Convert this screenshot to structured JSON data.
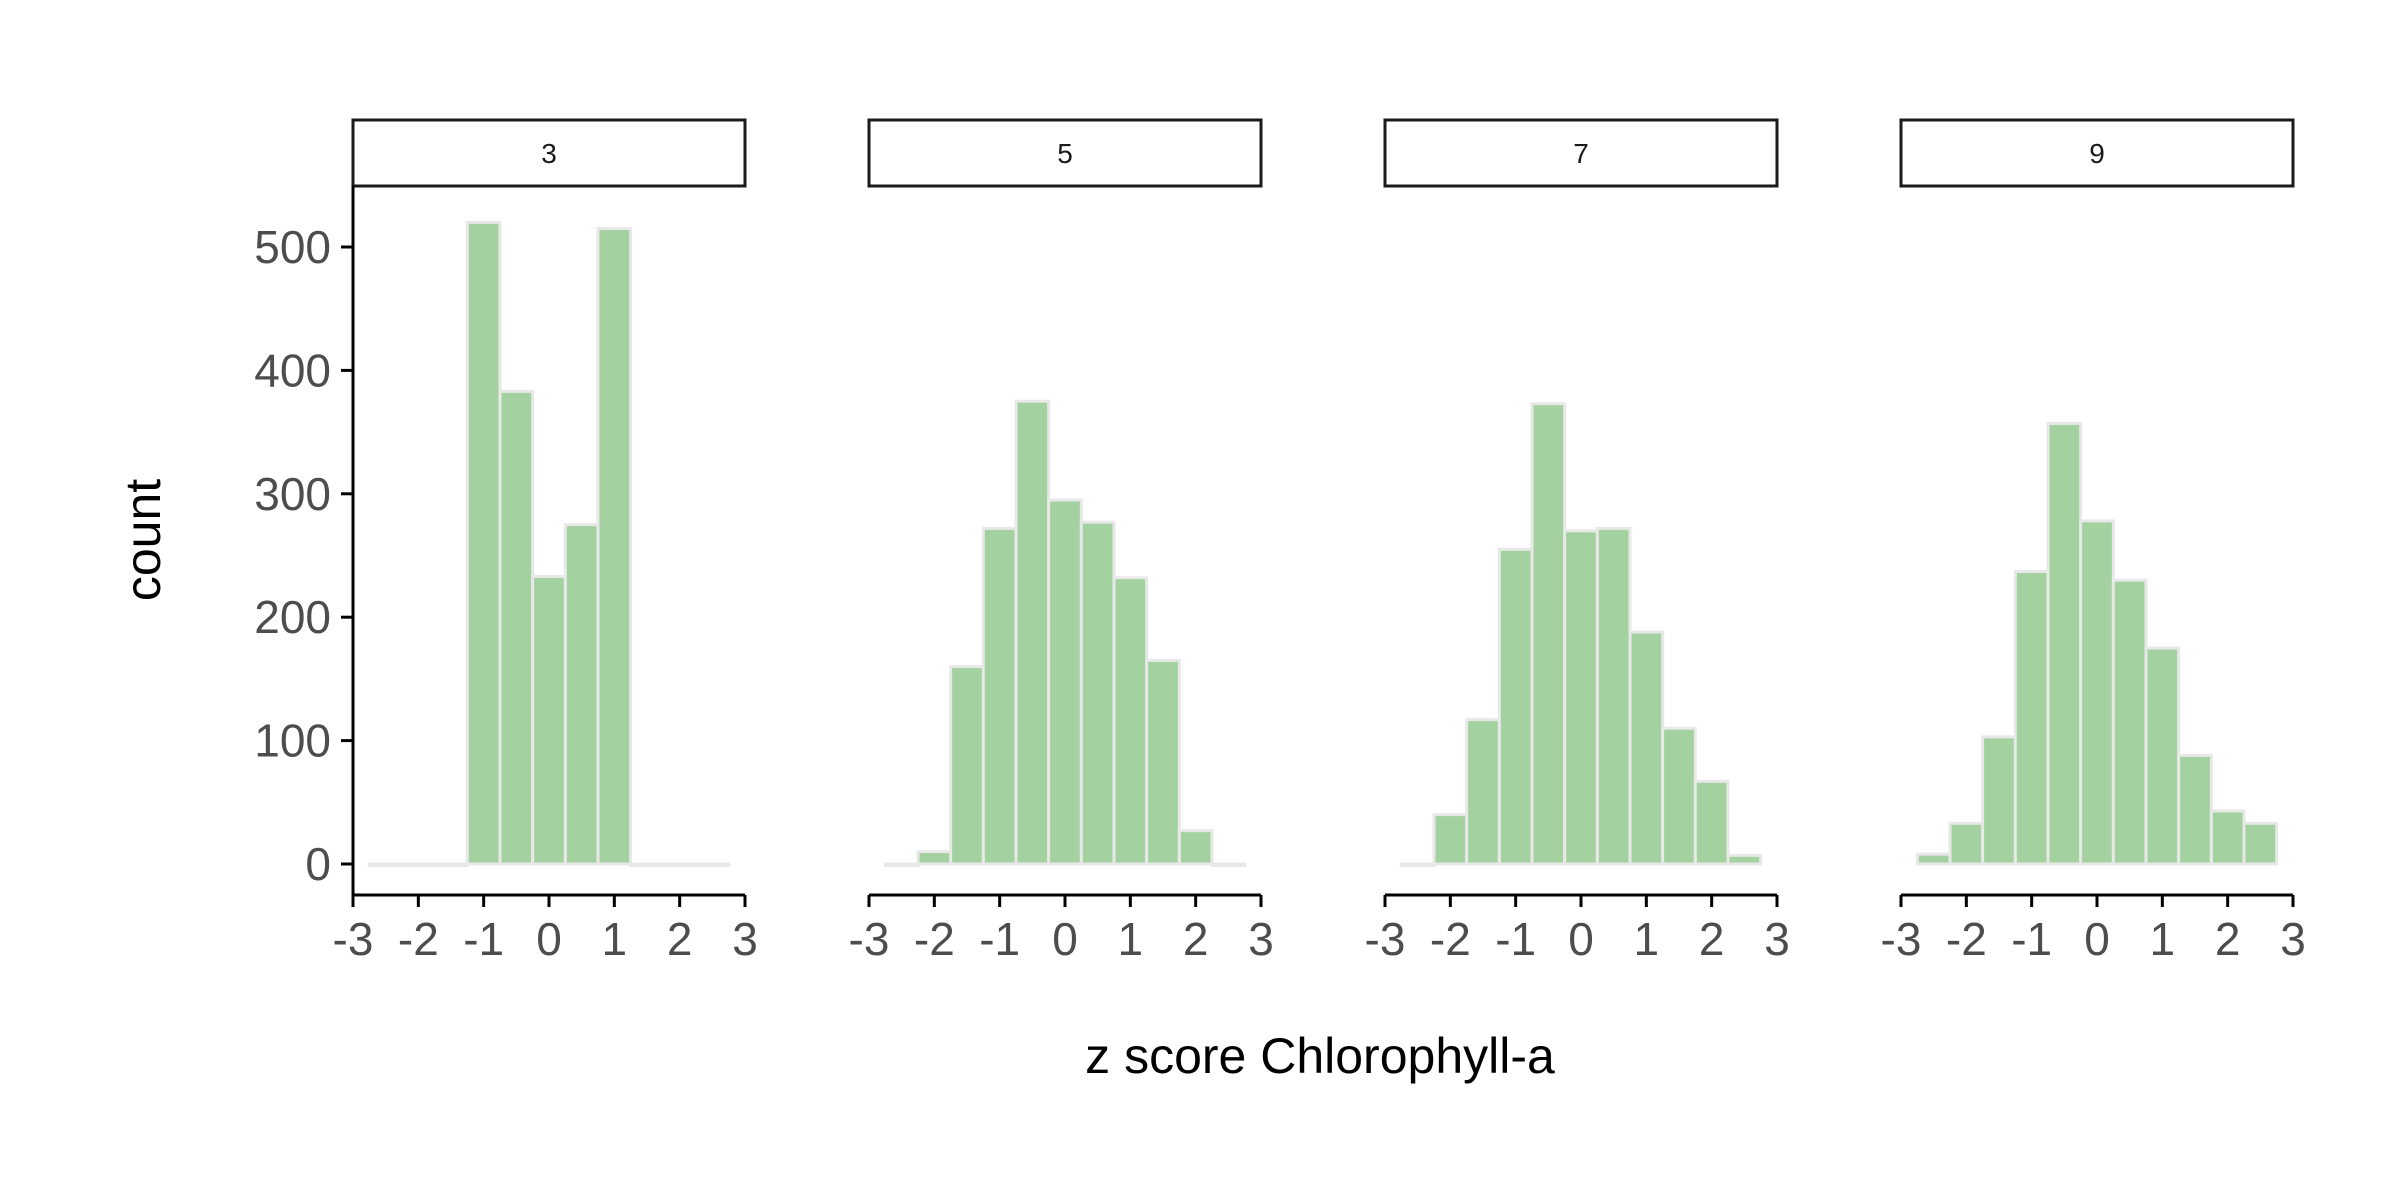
{
  "chart_data": {
    "type": "bar",
    "subtype": "faceted-histogram",
    "xlabel": "z score Chlorophyll-a",
    "ylabel": "count",
    "bar_fill": "#a3d1a0",
    "bar_outline": "#e8e8e8",
    "axis_color": "#000000",
    "tick_label_color": "#4d4d4d",
    "grid": false,
    "xlim": [
      -3,
      3
    ],
    "ylim": [
      0,
      550
    ],
    "x_ticks": [
      -3,
      -2,
      -1,
      0,
      1,
      2,
      3
    ],
    "x_tick_labels": [
      "-3",
      "-2",
      "-1",
      "0",
      "1",
      "2",
      "3"
    ],
    "y_ticks": [
      0,
      100,
      200,
      300,
      400,
      500
    ],
    "y_tick_labels": [
      "0",
      "100",
      "200",
      "300",
      "400",
      "500"
    ],
    "bin_centers": [
      -2.5,
      -2.0,
      -1.5,
      -1.0,
      -0.5,
      0.0,
      0.5,
      1.0,
      1.5,
      2.0,
      2.5
    ],
    "bin_width": 0.5,
    "facets": [
      {
        "label": "3",
        "values": [
          0,
          0,
          0,
          520,
          383,
          233,
          275,
          515,
          0,
          0,
          0
        ]
      },
      {
        "label": "5",
        "values": [
          0,
          10,
          160,
          272,
          375,
          295,
          277,
          232,
          165,
          27,
          0
        ]
      },
      {
        "label": "7",
        "values": [
          0,
          40,
          117,
          255,
          373,
          270,
          272,
          188,
          110,
          67,
          7
        ]
      },
      {
        "label": "9",
        "values": [
          8,
          33,
          103,
          237,
          357,
          278,
          230,
          175,
          88,
          43,
          33
        ]
      }
    ]
  }
}
